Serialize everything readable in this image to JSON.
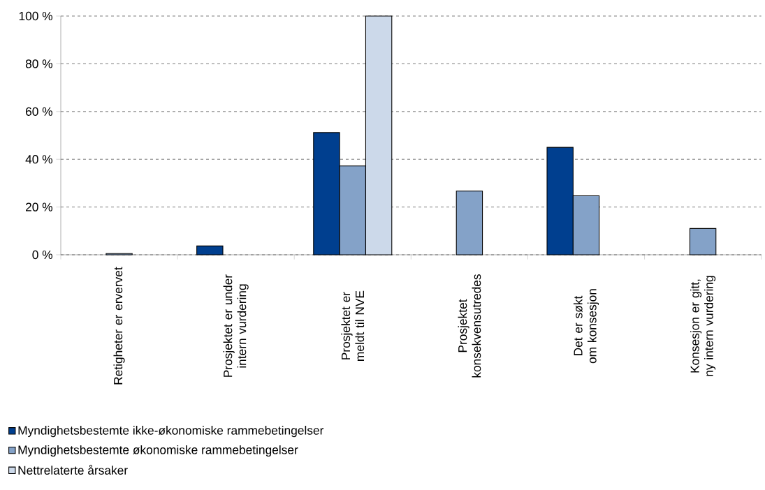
{
  "chart_data": {
    "type": "bar",
    "categories": [
      "Retigheter er ervervet",
      "Prosjektet er under intern vurdering",
      "Prosjektet er meldt til NVE",
      "Prosjektet konsekvensutredes",
      "Det er søkt om konsesjon",
      "Konsesjon er gitt, ny intern vurdering"
    ],
    "series": [
      {
        "name": "Myndighetsbestemte ikke-økonomiske rammebetingelser",
        "color": "#003f8f",
        "values": [
          null,
          3.7,
          51.2,
          null,
          45.0,
          null
        ]
      },
      {
        "name": "Myndighetsbestemte økonomiske rammebetingelser",
        "color": "#84a2c8",
        "values": [
          0.5,
          null,
          37.2,
          26.7,
          24.7,
          11.0
        ]
      },
      {
        "name": "Nettrelaterte årsaker",
        "color": "#ccd9ea",
        "values": [
          null,
          null,
          100,
          null,
          null,
          null
        ]
      }
    ],
    "ylim": [
      0,
      100
    ],
    "yticks": [
      {
        "value": 0,
        "label": "0 %"
      },
      {
        "value": 20,
        "label": "20 %"
      },
      {
        "value": 40,
        "label": "40 %"
      },
      {
        "value": 60,
        "label": "60 %"
      },
      {
        "value": 80,
        "label": "80 %"
      },
      {
        "value": 100,
        "label": "100 %"
      }
    ],
    "grid": "y",
    "legend": "bottom"
  }
}
